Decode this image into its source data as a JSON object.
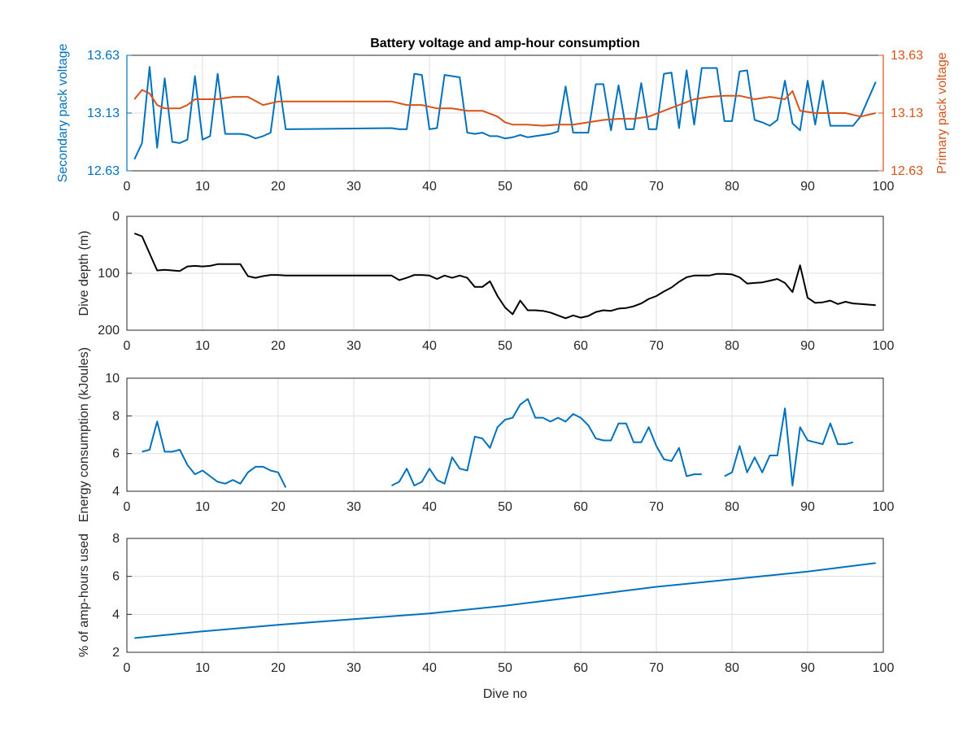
{
  "title": "Battery voltage and amp-hour consumption",
  "xlabel": "Dive no",
  "colors": {
    "secondary": "#0072BD",
    "primary": "#D95319",
    "depth": "#000000",
    "energy": "#0072BD",
    "amphours": "#0072BD",
    "axis_text": "#262626",
    "grid": "#dfdfdf"
  },
  "chart_data": [
    {
      "type": "line",
      "title": "Battery voltage and amp-hour consumption",
      "xlabel": "",
      "ylabel": "Secondary pack voltage",
      "ylabel_right": "Primary pack voltage",
      "xlim": [
        0,
        100
      ],
      "ylim": [
        12.63,
        13.63
      ],
      "ylim_right": [
        12.63,
        13.63
      ],
      "x_ticks": [
        "0",
        "10",
        "20",
        "30",
        "40",
        "50",
        "60",
        "70",
        "80",
        "90",
        "100"
      ],
      "y_ticks": [
        "12.63",
        "13.13",
        "13.63"
      ],
      "y_ticks_right": [
        "12.63",
        "13.13",
        "13.63"
      ],
      "grid": true,
      "series": [
        {
          "axis": "left",
          "color": "secondary",
          "x": [
            1,
            2,
            3,
            4,
            5,
            6,
            7,
            8,
            9,
            10,
            11,
            12,
            13,
            14,
            15,
            16,
            17,
            18,
            19,
            20,
            21,
            35,
            36,
            37,
            38,
            39,
            40,
            41,
            42,
            43,
            44,
            45,
            46,
            47,
            48,
            49,
            50,
            51,
            52,
            53,
            54,
            55,
            56,
            57,
            58,
            59,
            60,
            61,
            62,
            63,
            64,
            65,
            66,
            67,
            68,
            69,
            70,
            71,
            72,
            73,
            74,
            75,
            76,
            77,
            78,
            79,
            80,
            81,
            82,
            83,
            84,
            85,
            86,
            87,
            88,
            89,
            90,
            91,
            92,
            93,
            94,
            95,
            96,
            97,
            98,
            99
          ],
          "values": [
            12.73,
            12.87,
            13.53,
            12.83,
            13.43,
            12.88,
            12.87,
            12.9,
            13.45,
            12.9,
            12.93,
            13.47,
            12.95,
            12.95,
            12.95,
            12.94,
            12.91,
            12.93,
            12.96,
            13.45,
            12.99,
            13,
            12.99,
            12.99,
            13.47,
            13.46,
            12.99,
            13,
            13.46,
            13.45,
            13.44,
            12.96,
            12.95,
            12.96,
            12.93,
            12.93,
            12.91,
            12.92,
            12.94,
            12.92,
            12.93,
            12.94,
            12.95,
            12.97,
            13.36,
            12.96,
            12.96,
            12.96,
            13.38,
            13.38,
            12.98,
            13.37,
            12.99,
            12.99,
            13.39,
            12.99,
            12.99,
            13.47,
            13.48,
            13,
            13.5,
            13.03,
            13.52,
            13.52,
            13.52,
            13.06,
            13.06,
            13.49,
            13.5,
            13.07,
            13.05,
            13.02,
            13.07,
            13.41,
            13.04,
            12.98,
            13.41,
            13.03,
            13.41,
            13.02,
            13.02,
            13.02,
            13.02,
            13.1,
            13.25,
            13.4
          ]
        },
        {
          "axis": "right",
          "color": "primary",
          "x": [
            1,
            2,
            3,
            4,
            5,
            6,
            7,
            8,
            9,
            10,
            12,
            14,
            16,
            18,
            20,
            24,
            28,
            32,
            35,
            37,
            39,
            41,
            43,
            45,
            47,
            49,
            50,
            51,
            53,
            55,
            57,
            59,
            61,
            63,
            65,
            67,
            69,
            71,
            73,
            75,
            77,
            79,
            81,
            83,
            85,
            87,
            88,
            89,
            91,
            93,
            95,
            97,
            99
          ],
          "values": [
            13.25,
            13.33,
            13.3,
            13.2,
            13.17,
            13.17,
            13.17,
            13.2,
            13.25,
            13.25,
            13.25,
            13.27,
            13.27,
            13.2,
            13.23,
            13.23,
            13.23,
            13.23,
            13.23,
            13.2,
            13.2,
            13.17,
            13.17,
            13.15,
            13.15,
            13.1,
            13.05,
            13.03,
            13.03,
            13.02,
            13.03,
            13.03,
            13.05,
            13.07,
            13.08,
            13.08,
            13.1,
            13.15,
            13.2,
            13.25,
            13.27,
            13.28,
            13.28,
            13.25,
            13.27,
            13.25,
            13.32,
            13.15,
            13.13,
            13.13,
            13.13,
            13.1,
            13.13
          ]
        }
      ]
    },
    {
      "type": "line",
      "title": "",
      "xlabel": "",
      "ylabel": "Dive depth (m)",
      "xlim": [
        0,
        100
      ],
      "ylim": [
        0,
        200
      ],
      "y_reversed": true,
      "x_ticks": [
        "0",
        "10",
        "20",
        "30",
        "40",
        "50",
        "60",
        "70",
        "80",
        "90",
        "100"
      ],
      "y_ticks": [
        "0",
        "100",
        "200"
      ],
      "grid": true,
      "series": [
        {
          "color": "depth",
          "x": [
            1,
            2,
            3,
            4,
            5,
            6,
            7,
            8,
            9,
            10,
            11,
            12,
            13,
            14,
            15,
            16,
            17,
            18,
            19,
            20,
            21,
            22,
            25,
            30,
            35,
            36,
            37,
            38,
            39,
            40,
            41,
            42,
            43,
            44,
            45,
            46,
            47,
            48,
            49,
            50,
            51,
            52,
            53,
            54,
            55,
            56,
            57,
            58,
            59,
            60,
            61,
            62,
            63,
            64,
            65,
            66,
            67,
            68,
            69,
            70,
            71,
            72,
            73,
            74,
            75,
            76,
            77,
            78,
            79,
            80,
            81,
            82,
            83,
            84,
            85,
            86,
            87,
            88,
            89,
            90,
            91,
            92,
            93,
            94,
            95,
            96,
            97,
            98,
            99
          ],
          "values": [
            30,
            35,
            65,
            95,
            94,
            95,
            96,
            88,
            87,
            88,
            87,
            84,
            84,
            84,
            84,
            105,
            108,
            105,
            103,
            103,
            104,
            104,
            104,
            104,
            104,
            112,
            108,
            103,
            103,
            104,
            110,
            104,
            108,
            104,
            108,
            124,
            124,
            114,
            140,
            160,
            172,
            148,
            165,
            165,
            166,
            169,
            174,
            179,
            174,
            178,
            175,
            168,
            165,
            166,
            162,
            161,
            158,
            153,
            145,
            140,
            132,
            125,
            115,
            107,
            104,
            104,
            104,
            101,
            101,
            102,
            107,
            118,
            117,
            116,
            113,
            110,
            117,
            133,
            86,
            143,
            152,
            151,
            148,
            154,
            150,
            153,
            154,
            155,
            156
          ]
        }
      ]
    },
    {
      "type": "line",
      "title": "",
      "xlabel": "",
      "ylabel": "Energy consumption (kJoules)",
      "xlim": [
        0,
        100
      ],
      "ylim": [
        4,
        10
      ],
      "x_ticks": [
        "0",
        "10",
        "20",
        "30",
        "40",
        "50",
        "60",
        "70",
        "80",
        "90",
        "100"
      ],
      "y_ticks": [
        "4",
        "6",
        "8",
        "10"
      ],
      "grid": true,
      "series": [
        {
          "color": "energy",
          "segments": [
            {
              "x": [
                2,
                3,
                4,
                5,
                6,
                7,
                8,
                9,
                10,
                11,
                12,
                13,
                14,
                15,
                16,
                17,
                18,
                19,
                20,
                21
              ],
              "values": [
                6.1,
                6.2,
                7.7,
                6.1,
                6.1,
                6.2,
                5.4,
                4.9,
                5.1,
                4.8,
                4.5,
                4.4,
                4.6,
                4.4,
                5.0,
                5.3,
                5.3,
                5.1,
                5.0,
                4.2
              ]
            },
            {
              "x": [
                35,
                36,
                37,
                38,
                39,
                40,
                41,
                42,
                43,
                44,
                45,
                46,
                47,
                48,
                49,
                50,
                51,
                52,
                53,
                54,
                55,
                56,
                57,
                58,
                59,
                60,
                61,
                62,
                63,
                64,
                65,
                66,
                67,
                68,
                69,
                70,
                71,
                72,
                73,
                74,
                75,
                76
              ],
              "values": [
                4.3,
                4.5,
                5.2,
                4.3,
                4.5,
                5.2,
                4.6,
                4.4,
                5.8,
                5.2,
                5.1,
                6.9,
                6.8,
                6.3,
                7.4,
                7.8,
                7.9,
                8.6,
                8.9,
                7.9,
                7.9,
                7.7,
                7.9,
                7.7,
                8.1,
                7.9,
                7.5,
                6.8,
                6.7,
                6.7,
                7.6,
                7.6,
                6.6,
                6.6,
                7.4,
                6.4,
                5.7,
                5.6,
                6.3,
                4.8,
                4.9,
                4.9
              ]
            },
            {
              "x": [
                79,
                80,
                81,
                82,
                83,
                84,
                85,
                86,
                87,
                88,
                89,
                90,
                91,
                92,
                93,
                94,
                95,
                96
              ],
              "values": [
                4.8,
                5.0,
                6.4,
                5.0,
                5.8,
                5.0,
                5.9,
                5.9,
                8.4,
                4.3,
                7.4,
                6.7,
                6.6,
                6.5,
                7.6,
                6.5,
                6.5,
                6.6
              ]
            }
          ]
        }
      ]
    },
    {
      "type": "line",
      "title": "",
      "xlabel": "Dive no",
      "ylabel": "% of amp-hours used",
      "xlim": [
        0,
        100
      ],
      "ylim": [
        2,
        8
      ],
      "x_ticks": [
        "0",
        "10",
        "20",
        "30",
        "40",
        "50",
        "60",
        "70",
        "80",
        "90",
        "100"
      ],
      "y_ticks": [
        "2",
        "4",
        "6",
        "8"
      ],
      "grid": true,
      "series": [
        {
          "color": "amphours",
          "x": [
            1,
            10,
            20,
            30,
            40,
            50,
            60,
            70,
            80,
            90,
            99
          ],
          "values": [
            2.75,
            3.1,
            3.45,
            3.75,
            4.05,
            4.45,
            4.95,
            5.45,
            5.85,
            6.25,
            6.7
          ]
        }
      ]
    }
  ]
}
